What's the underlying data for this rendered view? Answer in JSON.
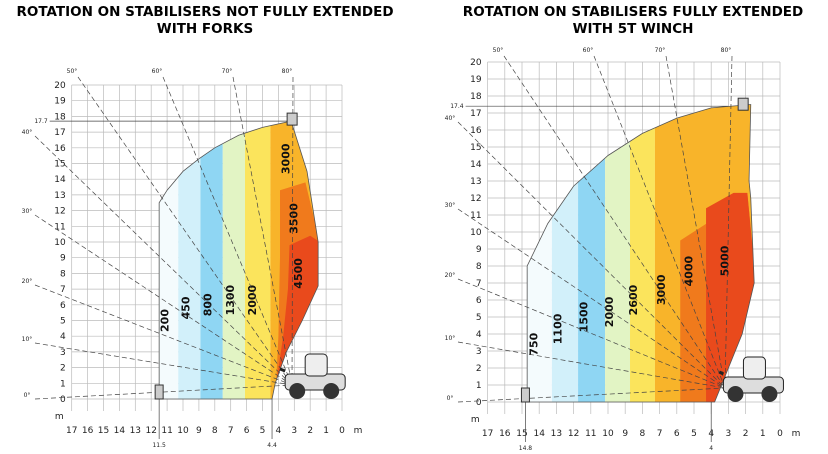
{
  "panels": [
    {
      "title_lines": [
        "ROTATION ON STABILISERS NOT FULLY EXTENDED",
        "WITH FORKS"
      ],
      "y_ticks": [
        0,
        1,
        2,
        3,
        4,
        5,
        6,
        7,
        8,
        9,
        10,
        11,
        12,
        13,
        14,
        15,
        16,
        17,
        18,
        19,
        20
      ],
      "x_ticks": [
        17,
        16,
        15,
        14,
        13,
        12,
        11,
        10,
        9,
        8,
        7,
        6,
        5,
        4,
        3,
        2,
        1,
        0
      ],
      "unit": "m",
      "zones": [
        "200",
        "450",
        "800",
        "1300",
        "2000",
        "3000",
        "3500",
        "4500"
      ],
      "angles_top": [
        "50°",
        "60°",
        "70°",
        "80°"
      ],
      "angles_left": [
        "40°",
        "30°",
        "20°",
        "10°",
        "0°"
      ],
      "max_height": "17.7",
      "max_reach": "11.5",
      "min_reach": "4.4"
    },
    {
      "title_lines": [
        "ROTATION ON STABILISERS FULLY EXTENDED",
        "WITH 5T WINCH"
      ],
      "y_ticks": [
        0,
        1,
        2,
        3,
        4,
        5,
        6,
        7,
        8,
        9,
        10,
        11,
        12,
        13,
        14,
        15,
        16,
        17,
        18,
        19,
        20
      ],
      "x_ticks": [
        17,
        16,
        15,
        14,
        13,
        12,
        11,
        10,
        9,
        8,
        7,
        6,
        5,
        4,
        3,
        2,
        1,
        0
      ],
      "unit": "m",
      "zones": [
        "750",
        "1100",
        "1500",
        "2000",
        "2600",
        "3000",
        "4000",
        "5000"
      ],
      "angles_top": [
        "50°",
        "60°",
        "70°",
        "80°"
      ],
      "angles_left": [
        "40°",
        "30°",
        "20°",
        "10°",
        "0°"
      ],
      "max_height": "17.4",
      "max_reach": "14.8",
      "min_reach": "4"
    }
  ]
}
